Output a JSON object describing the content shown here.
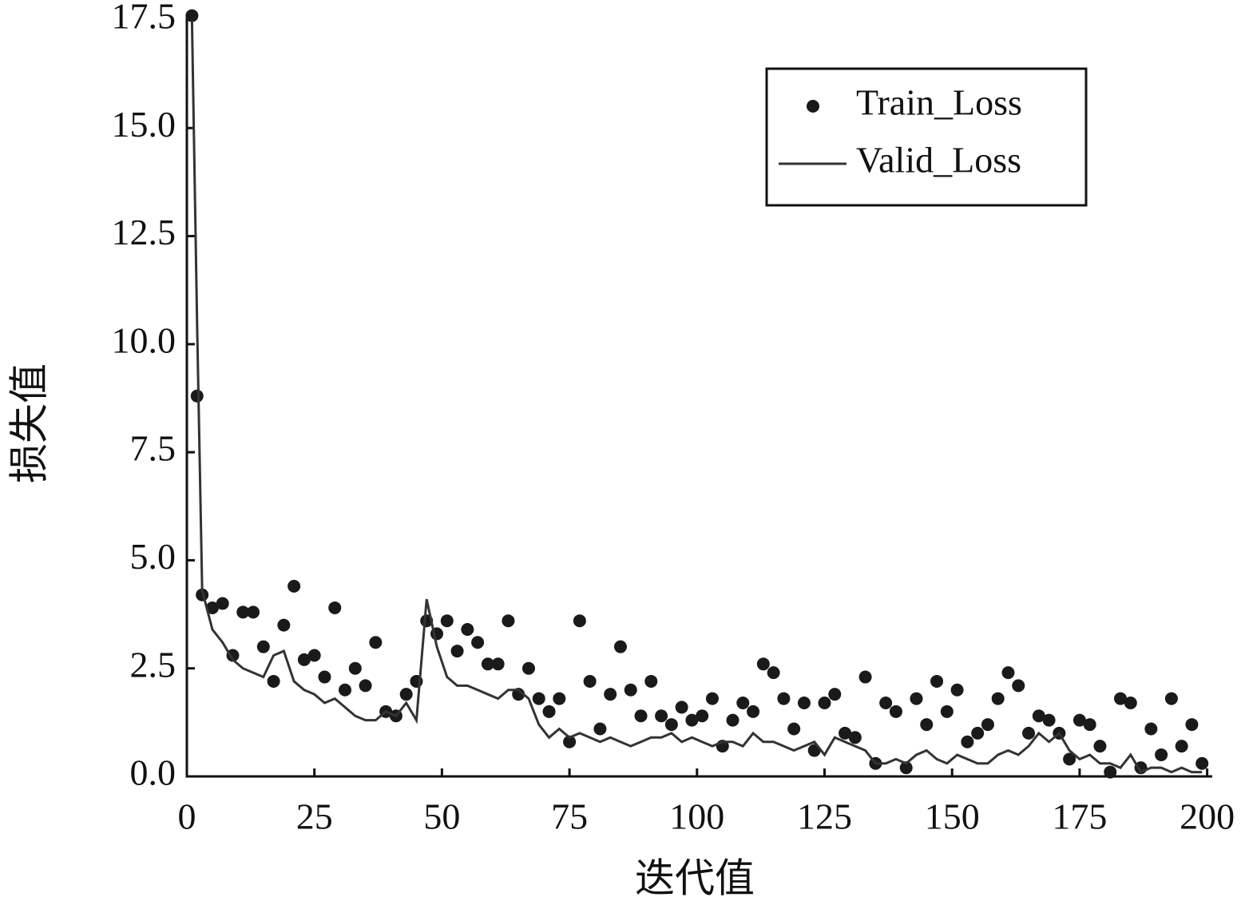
{
  "chart_data": {
    "type": "scatter-line",
    "x_label": "迭代值",
    "y_label": "损失值",
    "xlim": [
      0,
      201
    ],
    "ylim": [
      0,
      17.5
    ],
    "xticks": [
      0,
      25,
      50,
      75,
      100,
      125,
      150,
      175,
      200
    ],
    "yticks": [
      {
        "value": 0,
        "label": "0.0"
      },
      2.5,
      {
        "value": 5,
        "label": "5.0"
      },
      7.5,
      {
        "value": 10,
        "label": "10.0"
      },
      12.5,
      {
        "value": 15,
        "label": "15.0"
      },
      17.5
    ],
    "legend": "upper right",
    "x": [
      1,
      2,
      3,
      5,
      7,
      9,
      11,
      13,
      15,
      17,
      19,
      21,
      23,
      25,
      27,
      29,
      31,
      33,
      35,
      37,
      39,
      41,
      43,
      45,
      47,
      49,
      51,
      53,
      55,
      57,
      59,
      61,
      63,
      65,
      67,
      69,
      71,
      73,
      75,
      77,
      79,
      81,
      83,
      85,
      87,
      89,
      91,
      93,
      95,
      97,
      99,
      101,
      103,
      105,
      107,
      109,
      111,
      113,
      115,
      117,
      119,
      121,
      123,
      125,
      127,
      129,
      131,
      133,
      135,
      137,
      139,
      141,
      143,
      145,
      147,
      149,
      151,
      153,
      155,
      157,
      159,
      161,
      163,
      165,
      167,
      169,
      171,
      173,
      175,
      177,
      179,
      181,
      183,
      185,
      187,
      189,
      191,
      193,
      195,
      197,
      199
    ],
    "series": [
      {
        "name": "Train_Loss",
        "color": "#1a1a1a",
        "style": "dots",
        "values": [
          17.6,
          8.8,
          4.2,
          3.9,
          4.0,
          2.8,
          3.8,
          3.8,
          3.0,
          2.2,
          3.5,
          4.4,
          2.7,
          2.8,
          2.3,
          3.9,
          2.0,
          2.5,
          2.1,
          3.1,
          1.5,
          1.4,
          1.9,
          2.2,
          3.6,
          3.3,
          3.6,
          2.9,
          3.4,
          3.1,
          2.6,
          2.6,
          3.6,
          1.9,
          2.5,
          1.8,
          1.5,
          1.8,
          0.8,
          3.6,
          2.2,
          1.1,
          1.9,
          3.0,
          2.0,
          1.4,
          2.2,
          1.4,
          1.2,
          1.6,
          1.3,
          1.4,
          1.8,
          0.7,
          1.3,
          1.7,
          1.5,
          2.6,
          2.4,
          1.8,
          1.1,
          1.7,
          0.6,
          1.7,
          1.9,
          1.0,
          0.9,
          2.3,
          0.3,
          1.7,
          1.5,
          0.2,
          1.8,
          1.2,
          2.2,
          1.5,
          2.0,
          0.8,
          1.0,
          1.2,
          1.8,
          2.4,
          2.1,
          1.0,
          1.4,
          1.3,
          1.0,
          0.4,
          1.3,
          1.2,
          0.7,
          0.1,
          1.8,
          1.7,
          0.2,
          1.1,
          0.5,
          1.8,
          0.7,
          1.2,
          0.3
        ]
      },
      {
        "name": "Valid_Loss",
        "color": "#333333",
        "style": "line",
        "values": [
          17.5,
          10.5,
          4.3,
          3.4,
          3.1,
          2.7,
          2.5,
          2.4,
          2.3,
          2.8,
          2.9,
          2.2,
          2.0,
          1.9,
          1.7,
          1.8,
          1.6,
          1.4,
          1.3,
          1.3,
          1.5,
          1.4,
          1.7,
          1.3,
          4.1,
          3.0,
          2.3,
          2.1,
          2.1,
          2.0,
          1.9,
          1.8,
          2.0,
          2.0,
          1.8,
          1.2,
          0.9,
          1.1,
          0.9,
          1.0,
          0.9,
          0.8,
          0.9,
          0.8,
          0.7,
          0.8,
          0.9,
          0.9,
          1.0,
          0.8,
          0.9,
          0.8,
          0.7,
          0.8,
          0.8,
          0.7,
          1.0,
          0.8,
          0.8,
          0.7,
          0.6,
          0.7,
          0.8,
          0.5,
          0.9,
          0.8,
          0.7,
          0.6,
          0.3,
          0.3,
          0.4,
          0.3,
          0.5,
          0.6,
          0.4,
          0.3,
          0.5,
          0.4,
          0.3,
          0.3,
          0.5,
          0.6,
          0.5,
          0.7,
          1.0,
          0.8,
          1.0,
          0.6,
          0.4,
          0.5,
          0.3,
          0.3,
          0.2,
          0.5,
          0.1,
          0.2,
          0.2,
          0.1,
          0.2,
          0.1,
          0.1
        ]
      }
    ]
  }
}
